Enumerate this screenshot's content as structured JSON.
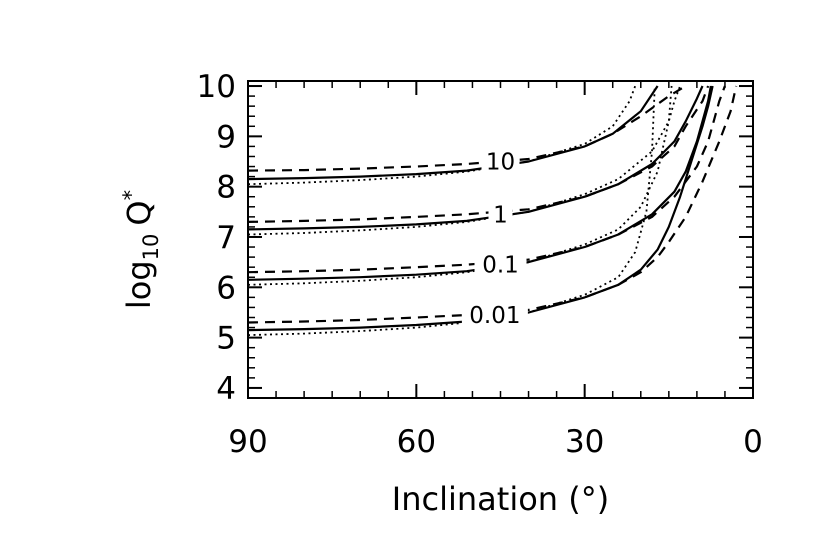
{
  "chart_data": {
    "type": "line",
    "xlabel": "Inclination (°)",
    "ylabel": {
      "base": "log",
      "sub": "10",
      "var": "Q",
      "sup": "*"
    },
    "xlim": [
      90,
      0
    ],
    "ylim": [
      3.8,
      10.1
    ],
    "x_ticks": [
      90,
      60,
      30,
      0
    ],
    "x_tick_labels": [
      "90",
      "60",
      "30",
      "0"
    ],
    "y_ticks": [
      4,
      5,
      6,
      7,
      8,
      9,
      10
    ],
    "y_tick_labels": [
      "4",
      "5",
      "6",
      "7",
      "8",
      "9",
      "10"
    ],
    "grid": false,
    "legend": "none",
    "series_groups": [
      {
        "label": "10",
        "label_x": 45,
        "label_y": 8.5,
        "solid": {
          "x": [
            90,
            80,
            70,
            60,
            51,
            40,
            30,
            25,
            20,
            17
          ],
          "y": [
            8.15,
            8.17,
            8.2,
            8.25,
            8.32,
            8.5,
            8.8,
            9.05,
            9.5,
            10
          ]
        },
        "dashed": {
          "x": [
            90,
            80,
            70,
            60,
            51,
            40,
            30,
            25,
            20,
            15,
            12
          ],
          "y": [
            8.32,
            8.33,
            8.36,
            8.4,
            8.45,
            8.55,
            8.8,
            9.05,
            9.4,
            9.8,
            10
          ]
        },
        "dotted": {
          "x": [
            90,
            80,
            70,
            60,
            51,
            40,
            30,
            25,
            22,
            21
          ],
          "y": [
            8.05,
            8.08,
            8.13,
            8.2,
            8.3,
            8.5,
            8.85,
            9.2,
            9.7,
            10
          ]
        }
      },
      {
        "label": "1",
        "label_x": 45,
        "label_y": 7.45,
        "solid": {
          "x": [
            90,
            80,
            70,
            60,
            51,
            40,
            30,
            24,
            18,
            14,
            12,
            10,
            9
          ],
          "y": [
            7.15,
            7.17,
            7.2,
            7.25,
            7.32,
            7.5,
            7.8,
            8.05,
            8.45,
            8.9,
            9.3,
            9.75,
            10
          ]
        },
        "dashed": {
          "x": [
            90,
            80,
            70,
            60,
            51,
            40,
            30,
            24,
            18,
            14,
            12,
            9,
            8
          ],
          "y": [
            7.3,
            7.32,
            7.35,
            7.4,
            7.45,
            7.55,
            7.8,
            8.05,
            8.4,
            8.8,
            9.2,
            9.7,
            10
          ]
        },
        "dotted": {
          "x": [
            90,
            80,
            70,
            60,
            51,
            40,
            30,
            24,
            18,
            15,
            14,
            13
          ],
          "y": [
            7.05,
            7.08,
            7.13,
            7.2,
            7.3,
            7.5,
            7.85,
            8.15,
            8.7,
            9.3,
            9.7,
            10
          ]
        }
      },
      {
        "label": "0.1",
        "label_x": 45,
        "label_y": 6.45,
        "solid": {
          "x": [
            90,
            80,
            70,
            60,
            51,
            40,
            30,
            24,
            18,
            14,
            12,
            10,
            9,
            8,
            7.5
          ],
          "y": [
            6.15,
            6.17,
            6.2,
            6.25,
            6.32,
            6.5,
            6.8,
            7.05,
            7.45,
            7.9,
            8.3,
            8.9,
            9.3,
            9.7,
            10
          ]
        },
        "dashed": {
          "x": [
            90,
            80,
            70,
            60,
            51,
            40,
            30,
            24,
            18,
            14,
            10,
            8,
            7,
            6,
            5
          ],
          "y": [
            6.3,
            6.32,
            6.35,
            6.4,
            6.45,
            6.55,
            6.8,
            7.05,
            7.4,
            7.8,
            8.4,
            8.9,
            9.3,
            9.7,
            10
          ]
        },
        "dotted": {
          "x": [
            90,
            80,
            70,
            60,
            51,
            40,
            30,
            24,
            20,
            17,
            15,
            14.5
          ],
          "y": [
            6.05,
            6.08,
            6.13,
            6.2,
            6.3,
            6.5,
            6.85,
            7.15,
            7.6,
            8.3,
            9.3,
            10
          ]
        }
      },
      {
        "label": "0.01",
        "label_x": 46,
        "label_y": 5.45,
        "solid": {
          "x": [
            90,
            80,
            70,
            60,
            51,
            40,
            30,
            24,
            20,
            17,
            15,
            13,
            11,
            9,
            8,
            7.2
          ],
          "y": [
            5.15,
            5.17,
            5.2,
            5.25,
            5.32,
            5.5,
            5.8,
            6.05,
            6.35,
            6.75,
            7.2,
            7.8,
            8.5,
            9.2,
            9.6,
            10
          ]
        },
        "dashed": {
          "x": [
            90,
            80,
            70,
            60,
            51,
            40,
            30,
            24,
            20,
            17,
            15,
            12,
            9,
            6,
            4,
            3
          ],
          "y": [
            5.3,
            5.32,
            5.35,
            5.4,
            5.45,
            5.55,
            5.8,
            6.05,
            6.3,
            6.6,
            6.9,
            7.4,
            8.1,
            8.9,
            9.5,
            10
          ]
        },
        "dotted": {
          "x": [
            90,
            80,
            70,
            60,
            51,
            40,
            30,
            24,
            21,
            19,
            18,
            17.5
          ],
          "y": [
            5.05,
            5.08,
            5.13,
            5.2,
            5.3,
            5.5,
            5.85,
            6.2,
            6.7,
            7.5,
            8.7,
            10
          ]
        }
      }
    ]
  }
}
